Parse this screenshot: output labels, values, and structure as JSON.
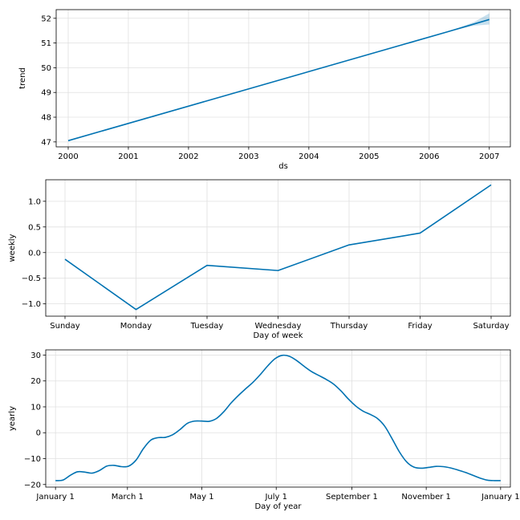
{
  "chart_data": [
    {
      "type": "line",
      "xlabel": "ds",
      "ylabel": "trend",
      "x_ticks": [
        "2000",
        "2001",
        "2002",
        "2003",
        "2004",
        "2005",
        "2006",
        "2007"
      ],
      "y_ticks": [
        "47",
        "48",
        "49",
        "50",
        "51",
        "52"
      ],
      "xlim": [
        1999.8,
        2007.35
      ],
      "ylim": [
        46.8,
        52.35
      ],
      "grid": true,
      "color": "#0072B2",
      "band_color": "#0072B2",
      "series": [
        {
          "x": [
            2000,
            2006.3,
            2007
          ],
          "y": [
            47.05,
            51.45,
            51.95
          ]
        }
      ],
      "uncertainty": {
        "x": [
          2006.3,
          2006.5,
          2006.75,
          2007
        ],
        "upper": [
          51.45,
          51.62,
          51.85,
          52.2
        ],
        "lower": [
          51.45,
          51.56,
          51.7,
          51.75
        ]
      }
    },
    {
      "type": "line",
      "xlabel": "Day of week",
      "ylabel": "weekly",
      "categories": [
        "Sunday",
        "Monday",
        "Tuesday",
        "Wednesday",
        "Thursday",
        "Friday",
        "Saturday"
      ],
      "y_ticks": [
        "1.0",
        "0.5",
        "0.0",
        "−0.5",
        "−1.0"
      ],
      "ylim": [
        -1.24,
        1.42
      ],
      "grid": true,
      "color": "#0072B2",
      "values": [
        -0.13,
        -1.11,
        -0.25,
        -0.35,
        0.15,
        0.38,
        1.32
      ]
    },
    {
      "type": "line",
      "xlabel": "Day of year",
      "ylabel": "yearly",
      "x_ticks": [
        "January 1",
        "March 1",
        "May 1",
        "July 1",
        "September 1",
        "November 1",
        "January 1"
      ],
      "x_tick_positions": [
        0,
        59,
        120,
        181,
        243,
        304,
        365
      ],
      "y_ticks": [
        "30",
        "20",
        "10",
        "0",
        "−10",
        "−20"
      ],
      "xlim": [
        -8,
        373
      ],
      "ylim": [
        -21,
        32
      ],
      "grid": true,
      "color": "#0072B2",
      "x": [
        0,
        6,
        12,
        18,
        24,
        30,
        36,
        42,
        48,
        54,
        60,
        66,
        72,
        78,
        84,
        90,
        96,
        102,
        108,
        114,
        120,
        126,
        132,
        138,
        144,
        150,
        156,
        162,
        168,
        174,
        180,
        186,
        192,
        198,
        204,
        210,
        216,
        222,
        228,
        234,
        240,
        246,
        252,
        258,
        264,
        270,
        276,
        282,
        288,
        294,
        300,
        306,
        312,
        318,
        324,
        330,
        336,
        342,
        348,
        354,
        360,
        365
      ],
      "y": [
        -18.5,
        -18.3,
        -16.5,
        -15.1,
        -15.2,
        -15.6,
        -14.6,
        -12.9,
        -12.6,
        -13.1,
        -12.9,
        -10.6,
        -6.2,
        -2.9,
        -1.9,
        -1.8,
        -0.8,
        1.2,
        3.6,
        4.5,
        4.5,
        4.4,
        5.5,
        8.1,
        11.5,
        14.4,
        17.0,
        19.5,
        22.5,
        25.8,
        28.6,
        29.9,
        29.5,
        27.8,
        25.6,
        23.6,
        22.1,
        20.6,
        18.8,
        16.2,
        13.1,
        10.4,
        8.4,
        7.1,
        5.5,
        2.5,
        -2.3,
        -7.4,
        -11.3,
        -13.3,
        -13.7,
        -13.4,
        -13.0,
        -13.1,
        -13.6,
        -14.4,
        -15.3,
        -16.4,
        -17.5,
        -18.3,
        -18.5,
        -18.5
      ]
    }
  ]
}
